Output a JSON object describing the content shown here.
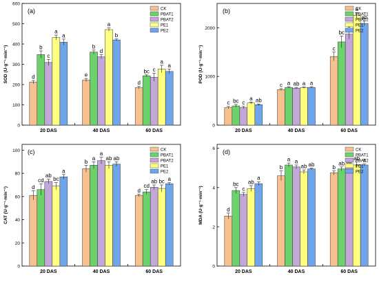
{
  "colors": {
    "CK": "#f7c08f",
    "PBAT1": "#6cd36c",
    "PBAT2": "#c3a7d9",
    "PE1": "#ffff80",
    "PE2": "#6fa5ea"
  },
  "chart_data": [
    {
      "type": "bar",
      "panel": "(a)",
      "ylabel": "SOD (U·g⁻¹·min⁻¹)",
      "categories": [
        "20 DAS",
        "40 DAS",
        "60 DAS"
      ],
      "ylim": [
        0,
        600
      ],
      "yticks": [
        0,
        100,
        200,
        300,
        400,
        500,
        600
      ],
      "series": [
        {
          "name": "CK",
          "values": [
            212,
            222,
            185
          ],
          "errors": [
            8,
            8,
            6
          ],
          "letters": [
            "d",
            "e",
            "d"
          ]
        },
        {
          "name": "PBAT1",
          "values": [
            348,
            360,
            243
          ],
          "errors": [
            18,
            10,
            5
          ],
          "letters": [
            "b",
            "b",
            "bc"
          ]
        },
        {
          "name": "PBAT2",
          "values": [
            309,
            337,
            236
          ],
          "errors": [
            15,
            10,
            20
          ],
          "letters": [
            "c",
            "d",
            "c"
          ]
        },
        {
          "name": "PE1",
          "values": [
            432,
            471,
            277
          ],
          "errors": [
            12,
            8,
            18
          ],
          "letters": [
            "a",
            "a",
            "a"
          ]
        },
        {
          "name": "PE2",
          "values": [
            409,
            420,
            265
          ],
          "errors": [
            15,
            5,
            12
          ],
          "letters": [
            "a",
            "b",
            "a"
          ]
        }
      ]
    },
    {
      "type": "bar",
      "panel": "(b)",
      "ylabel": "POD (U·g⁻¹·min⁻¹)",
      "categories": [
        "20 DAS",
        "40 DAS",
        "60 DAS"
      ],
      "ylim": [
        0,
        2500
      ],
      "yticks": [
        0,
        1000,
        2000
      ],
      "series": [
        {
          "name": "CK",
          "values": [
            360,
            730,
            1410
          ],
          "errors": [
            25,
            20,
            90
          ],
          "letters": [
            "c",
            "c",
            "c"
          ]
        },
        {
          "name": "PBAT1",
          "values": [
            395,
            775,
            1710
          ],
          "errors": [
            30,
            15,
            120
          ],
          "letters": [
            "bc",
            "a",
            "bc"
          ]
        },
        {
          "name": "PBAT2",
          "values": [
            360,
            760,
            1870
          ],
          "errors": [
            25,
            15,
            100
          ],
          "letters": [
            "c",
            "ab",
            "b"
          ]
        },
        {
          "name": "PE1",
          "values": [
            455,
            770,
            2250
          ],
          "errors": [
            20,
            15,
            60
          ],
          "letters": [
            "a",
            "a",
            "a"
          ]
        },
        {
          "name": "PE2",
          "values": [
            420,
            775,
            2090
          ],
          "errors": [
            15,
            15,
            50
          ],
          "letters": [
            "ab",
            "a",
            "ab"
          ]
        }
      ]
    },
    {
      "type": "bar",
      "panel": "(c)",
      "ylabel": "CAT (U·g⁻¹·min⁻¹)",
      "categories": [
        "20 DAS",
        "40 DAS",
        "60 DAS"
      ],
      "ylim": [
        0,
        105
      ],
      "yticks": [
        0,
        20,
        40,
        60,
        80,
        100
      ],
      "series": [
        {
          "name": "CK",
          "values": [
            61,
            84,
            61
          ],
          "errors": [
            4,
            3,
            1
          ],
          "letters": [
            "d",
            "b",
            "d"
          ]
        },
        {
          "name": "PBAT1",
          "values": [
            66,
            87,
            64
          ],
          "errors": [
            5,
            3,
            2
          ],
          "letters": [
            "cd",
            "a",
            "cd"
          ]
        },
        {
          "name": "PBAT2",
          "values": [
            73,
            91,
            68
          ],
          "errors": [
            2,
            3,
            2
          ],
          "letters": [
            "ab",
            "a",
            "ab"
          ]
        },
        {
          "name": "PE1",
          "values": [
            69,
            87,
            67
          ],
          "errors": [
            3,
            3,
            3
          ],
          "letters": [
            "bc",
            "ab",
            "bc"
          ]
        },
        {
          "name": "PE2",
          "values": [
            77,
            88,
            71
          ],
          "errors": [
            2,
            2,
            1
          ],
          "letters": [
            "a",
            "ab",
            "a"
          ]
        }
      ]
    },
    {
      "type": "bar",
      "panel": "(d)",
      "ylabel": "MDA (U·g⁻¹·min⁻¹)",
      "categories": [
        "20 DAS",
        "40 DAS",
        "60 DAS"
      ],
      "ylim": [
        0,
        6.2
      ],
      "yticks": [
        0,
        2,
        4,
        6
      ],
      "series": [
        {
          "name": "CK",
          "values": [
            2.55,
            4.6,
            4.75
          ],
          "errors": [
            0.15,
            0.25,
            0.1
          ],
          "letters": [
            "d",
            "b",
            "b"
          ]
        },
        {
          "name": "PBAT1",
          "values": [
            3.85,
            5.15,
            4.95
          ],
          "errors": [
            0.15,
            0.1,
            0.1
          ],
          "letters": [
            "bc",
            "a",
            "ab"
          ]
        },
        {
          "name": "PBAT2",
          "values": [
            3.65,
            5.05,
            5.1
          ],
          "errors": [
            0.1,
            0.1,
            0.05
          ],
          "letters": [
            "c",
            "a",
            "ab"
          ]
        },
        {
          "name": "PE1",
          "values": [
            3.95,
            4.8,
            5.15
          ],
          "errors": [
            0.15,
            0.1,
            0.15
          ],
          "letters": [
            "ab",
            "ab",
            "ab"
          ]
        },
        {
          "name": "PE2",
          "values": [
            4.2,
            4.95,
            5.15
          ],
          "errors": [
            0.1,
            0.05,
            0.05
          ],
          "letters": [
            "a",
            "ab",
            "a"
          ]
        }
      ]
    }
  ]
}
